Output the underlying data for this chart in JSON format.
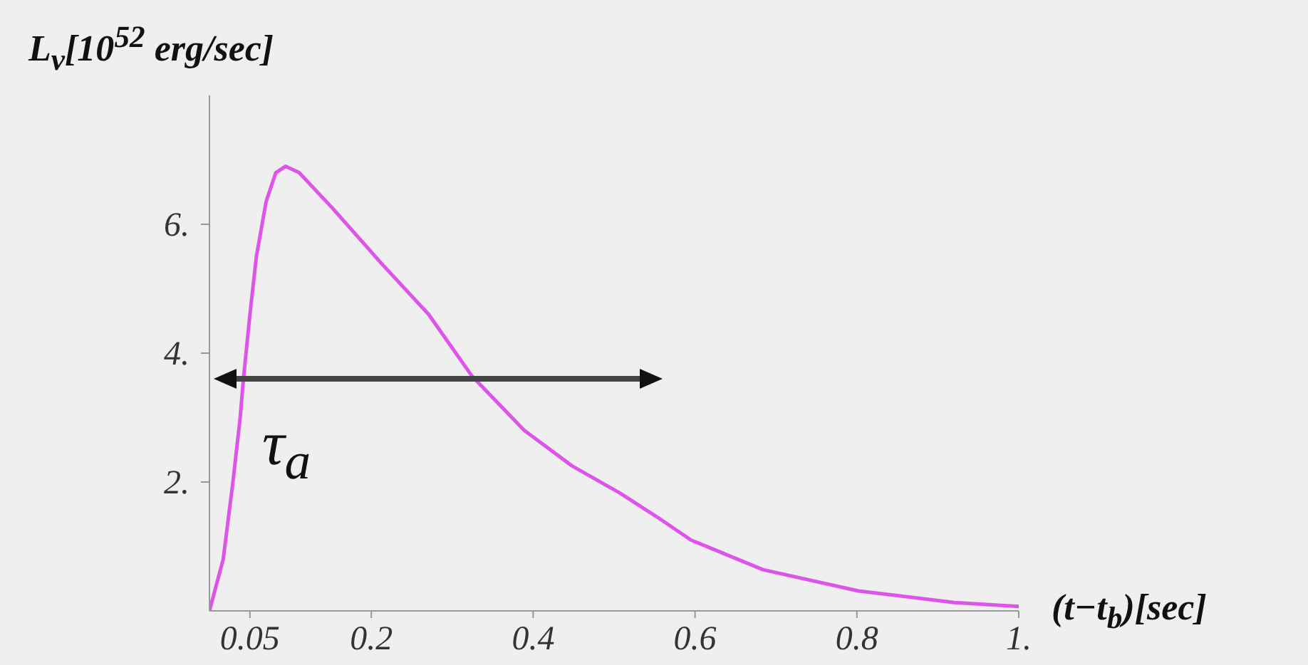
{
  "chart_data": {
    "type": "line",
    "ylabel": "L$_{ν}$[10$^{52}$ erg/sec]",
    "xlabel": "(t−t$_{b}$)[sec]",
    "annotations": [
      "τ$_{a}$"
    ],
    "xlim": [
      0,
      1
    ],
    "xticks": [
      0.05,
      0.2,
      0.4,
      0.6,
      0.8,
      {
        "value": 1,
        "label": "1."
      }
    ],
    "ylim": [
      0,
      8
    ],
    "yticks": [
      {
        "value": 2,
        "label": "2."
      },
      {
        "value": 4,
        "label": "4."
      },
      {
        "value": 6,
        "label": "6."
      }
    ],
    "grid": false,
    "legend": false,
    "marker": "none",
    "line_style": "solid",
    "series": [
      {
        "color": "#dd55e8",
        "x": [
          0,
          0.017,
          0.029,
          0.038,
          0.042,
          0.05,
          0.058,
          0.07,
          0.082,
          0.094,
          0.111,
          0.152,
          0.212,
          0.271,
          0.324,
          0.389,
          0.448,
          0.507,
          0.554,
          0.595,
          0.684,
          0.802,
          0.92,
          1.0
        ],
        "values": [
          0,
          0.8,
          2.0,
          3.0,
          3.6,
          4.6,
          5.5,
          6.35,
          6.8,
          6.9,
          6.8,
          6.25,
          5.4,
          4.6,
          3.65,
          2.8,
          2.25,
          1.83,
          1.45,
          1.1,
          0.64,
          0.31,
          0.13,
          0.07
        ]
      }
    ]
  }
}
